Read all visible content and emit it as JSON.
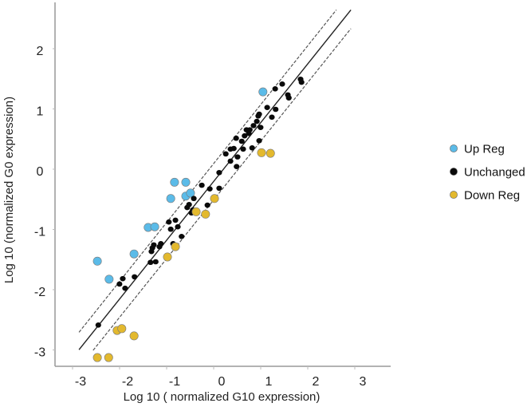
{
  "chart_data": {
    "type": "scatter",
    "title": "",
    "xlabel": "Log 10 ( normalized G10 expression)",
    "ylabel": "Log 10  (normalized G0 expression)",
    "xlim": [
      -3.3,
      3.5
    ],
    "ylim": [
      -3.3,
      2.75
    ],
    "xticks": [
      -3,
      -2,
      -1,
      0,
      1,
      2,
      3
    ],
    "xtick_labels": [
      "-3",
      "-2",
      "-1",
      "0",
      "1",
      "2",
      "3"
    ],
    "yticks": [
      2,
      1,
      0,
      -1,
      -2,
      -3
    ],
    "ytick_labels": [
      "2",
      "1",
      "0",
      "-1",
      "-2",
      "-3"
    ],
    "grid": false,
    "legend_position": "right",
    "series": [
      {
        "name": "Up Reg",
        "color": "#5bbbe8",
        "points": [
          [
            0.81,
            1.31
          ],
          [
            -1.07,
            -0.19
          ],
          [
            -0.83,
            -0.19
          ],
          [
            -1.15,
            -0.46
          ],
          [
            -0.83,
            -0.42
          ],
          [
            -0.73,
            -0.37
          ],
          [
            -1.63,
            -0.94
          ],
          [
            -1.49,
            -0.93
          ],
          [
            -1.93,
            -1.38
          ],
          [
            -2.71,
            -1.5
          ],
          [
            -2.46,
            -1.8
          ]
        ]
      },
      {
        "name": "Unchanged",
        "color": "#0a0a0a",
        "points": [
          [
            -2.69,
            -2.56
          ],
          [
            -2.24,
            -1.88
          ],
          [
            -2.17,
            -1.79
          ],
          [
            -2.12,
            -1.95
          ],
          [
            -1.92,
            -1.76
          ],
          [
            -1.58,
            -1.52
          ],
          [
            -1.47,
            -1.51
          ],
          [
            -1.56,
            -1.34
          ],
          [
            -1.54,
            -1.28
          ],
          [
            -1.51,
            -1.23
          ],
          [
            -1.39,
            -1.26
          ],
          [
            -1.36,
            -1.21
          ],
          [
            -1.19,
            -0.85
          ],
          [
            -1.15,
            -0.97
          ],
          [
            -1.05,
            -0.82
          ],
          [
            -1.0,
            -0.93
          ],
          [
            -1.1,
            -1.21
          ],
          [
            -0.92,
            -1.09
          ],
          [
            -0.8,
            -0.61
          ],
          [
            -0.76,
            -0.56
          ],
          [
            -0.68,
            -0.65
          ],
          [
            -0.71,
            -0.7
          ],
          [
            -0.66,
            -0.46
          ],
          [
            -0.49,
            -0.24
          ],
          [
            -0.37,
            -0.57
          ],
          [
            -0.32,
            -0.3
          ],
          [
            -0.12,
            -0.29
          ],
          [
            -0.12,
            -0.03
          ],
          [
            0.02,
            0.28
          ],
          [
            0.12,
            0.36
          ],
          [
            0.19,
            0.37
          ],
          [
            0.12,
            0.16
          ],
          [
            0.27,
            0.23
          ],
          [
            0.25,
            0.07
          ],
          [
            0.24,
            0.54
          ],
          [
            0.36,
            0.49
          ],
          [
            0.39,
            0.36
          ],
          [
            0.42,
            0.58
          ],
          [
            0.46,
            0.68
          ],
          [
            0.53,
            0.68
          ],
          [
            0.51,
            0.62
          ],
          [
            0.58,
            0.38
          ],
          [
            0.61,
            0.75
          ],
          [
            0.68,
            0.82
          ],
          [
            0.73,
            0.94
          ],
          [
            0.71,
            0.91
          ],
          [
            0.76,
            0.72
          ],
          [
            0.73,
            0.5
          ],
          [
            0.9,
            1.05
          ],
          [
            1.07,
            1.36
          ],
          [
            1.22,
            1.44
          ],
          [
            1.08,
            1.02
          ],
          [
            1.0,
            0.89
          ],
          [
            1.34,
            1.26
          ],
          [
            1.36,
            1.21
          ],
          [
            1.61,
            1.52
          ],
          [
            1.63,
            1.47
          ]
        ]
      },
      {
        "name": "Down Reg",
        "color": "#e3b92e",
        "points": [
          [
            0.78,
            0.3
          ],
          [
            0.97,
            0.29
          ],
          [
            -0.22,
            -0.46
          ],
          [
            -0.61,
            -0.68
          ],
          [
            -0.41,
            -0.72
          ],
          [
            -1.05,
            -1.26
          ],
          [
            -1.22,
            -1.43
          ],
          [
            -2.29,
            -2.65
          ],
          [
            -2.19,
            -2.62
          ],
          [
            -1.93,
            -2.74
          ],
          [
            -2.71,
            -3.1
          ],
          [
            -2.47,
            -3.1
          ]
        ]
      }
    ],
    "lines": [
      {
        "name": "identity",
        "style": "solid",
        "from": [
          -3.1,
          -2.97
        ],
        "to": [
          2.68,
          2.67
        ]
      },
      {
        "name": "upper-bound",
        "style": "dashed",
        "from": [
          -3.1,
          -2.68
        ],
        "to": [
          2.37,
          2.67
        ]
      },
      {
        "name": "lower-bound",
        "style": "dashed",
        "from": [
          -2.8,
          -2.98
        ],
        "to": [
          2.68,
          2.36
        ]
      }
    ]
  }
}
